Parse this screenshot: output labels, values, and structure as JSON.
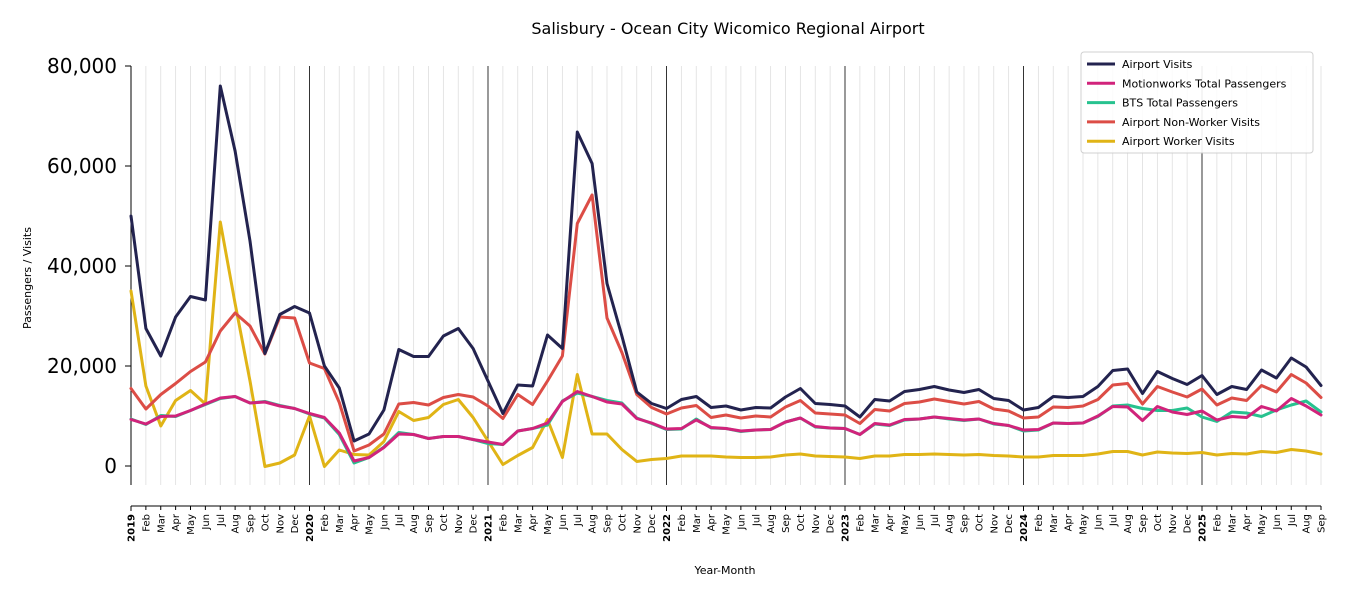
{
  "chart_data": {
    "type": "line",
    "title": "Salisbury - Ocean City Wicomico Regional Airport",
    "xlabel": "Year-Month",
    "ylabel": "Passengers / Visits",
    "ylim": [
      -3800,
      80000
    ],
    "yticks": [
      0,
      20000,
      40000,
      60000,
      80000
    ],
    "ytick_labels": [
      "0",
      "20,000",
      "40,000",
      "60,000",
      "80,000"
    ],
    "grid": "vertical, monthly",
    "legend_position": "top-right",
    "x_start": "2019-01",
    "x": [
      "2019",
      "Feb",
      "Mar",
      "Apr",
      "May",
      "Jun",
      "Jul",
      "Aug",
      "Sep",
      "Oct",
      "Nov",
      "Dec",
      "2020",
      "Feb",
      "Mar",
      "Apr",
      "May",
      "Jun",
      "Jul",
      "Aug",
      "Sep",
      "Oct",
      "Nov",
      "Dec",
      "2021",
      "Feb",
      "Mar",
      "Apr",
      "May",
      "Jun",
      "Jul",
      "Aug",
      "Sep",
      "Oct",
      "Nov",
      "Dec",
      "2022",
      "Feb",
      "Mar",
      "Apr",
      "May",
      "Jun",
      "Jul",
      "Aug",
      "Sep",
      "Oct",
      "Nov",
      "Dec",
      "2023",
      "Feb",
      "Mar",
      "Apr",
      "May",
      "Jun",
      "Jul",
      "Aug",
      "Sep",
      "Oct",
      "Nov",
      "Dec",
      "2024",
      "Feb",
      "Mar",
      "Apr",
      "May",
      "Jun",
      "Jul",
      "Aug",
      "Sep",
      "Oct",
      "Nov",
      "Dec",
      "2025",
      "Feb",
      "Mar",
      "Apr",
      "May",
      "Jun",
      "Jul",
      "Aug",
      "Sep"
    ],
    "series": [
      {
        "name": "Airport Visits",
        "color": "#23234f",
        "values": [
          50000,
          27500,
          22000,
          29800,
          33900,
          33200,
          76000,
          63000,
          45000,
          22500,
          30300,
          31900,
          30600,
          20000,
          15600,
          5000,
          6400,
          11200,
          23300,
          21900,
          21900,
          26000,
          27500,
          23500,
          17000,
          10500,
          16200,
          16000,
          26200,
          23500,
          66800,
          60500,
          36500,
          26000,
          14800,
          12500,
          11500,
          13300,
          13900,
          11700,
          12000,
          11200,
          11700,
          11600,
          13800,
          15500,
          12500,
          12300,
          12000,
          9800,
          13300,
          13000,
          14900,
          15300,
          15900,
          15200,
          14700,
          15300,
          13500,
          13100,
          11200,
          11700,
          13900,
          13700,
          13900,
          15900,
          19100,
          19400,
          14500,
          18900,
          17500,
          16300,
          18100,
          14300,
          15900,
          15300,
          19200,
          17600,
          21600,
          19800,
          16100
        ]
      },
      {
        "name": "Motionworks Total Passengers",
        "color": "#d1237b",
        "values": [
          9300,
          8400,
          9900,
          10000,
          11100,
          12400,
          13600,
          13900,
          12600,
          12800,
          12000,
          11500,
          10500,
          9700,
          6600,
          1000,
          1700,
          3700,
          6400,
          6300,
          5500,
          5900,
          5900,
          5300,
          4800,
          4300,
          7000,
          7500,
          8600,
          12900,
          14900,
          13900,
          12800,
          12400,
          9500,
          8600,
          7400,
          7500,
          9200,
          7700,
          7500,
          7000,
          7200,
          7300,
          8800,
          9600,
          7900,
          7600,
          7500,
          6300,
          8500,
          8200,
          9300,
          9400,
          9800,
          9500,
          9200,
          9400,
          8500,
          8100,
          7200,
          7300,
          8600,
          8500,
          8600,
          10000,
          11900,
          11800,
          9100,
          11900,
          10800,
          10300,
          11000,
          9200,
          9900,
          9700,
          11900,
          11000,
          13500,
          12000,
          10200
        ]
      },
      {
        "name": "BTS Total Passengers",
        "color": "#27c28f",
        "values": [
          9400,
          8300,
          10100,
          9900,
          11100,
          12300,
          13500,
          13900,
          12600,
          12900,
          12100,
          11500,
          10400,
          9600,
          6300,
          600,
          1700,
          3800,
          6700,
          6300,
          5500,
          5900,
          5900,
          5300,
          4500,
          4300,
          7000,
          7500,
          8200,
          13000,
          14600,
          13900,
          13100,
          12600,
          9600,
          8500,
          7300,
          7400,
          9400,
          7600,
          7500,
          6900,
          7200,
          7300,
          8800,
          9600,
          7800,
          7600,
          7500,
          6300,
          8400,
          8100,
          9200,
          9400,
          9800,
          9400,
          9100,
          9400,
          8400,
          8100,
          7000,
          7200,
          8600,
          8500,
          8600,
          9900,
          12000,
          12200,
          11500,
          11100,
          11100,
          11600,
          9800,
          8900,
          10800,
          10600,
          9900,
          11200,
          12200,
          13000,
          10800
        ]
      },
      {
        "name": "Airport Non-Worker Visits",
        "color": "#dc4d46",
        "values": [
          15500,
          11400,
          14300,
          16500,
          18900,
          20800,
          27000,
          30600,
          28000,
          22400,
          29800,
          29600,
          20600,
          19500,
          12700,
          3000,
          4200,
          6400,
          12400,
          12700,
          12200,
          13700,
          14300,
          13800,
          12000,
          9500,
          14300,
          12300,
          17000,
          22000,
          48500,
          54200,
          29600,
          22700,
          14300,
          11700,
          10400,
          11600,
          12100,
          9700,
          10200,
          9600,
          10000,
          9800,
          11800,
          13100,
          10600,
          10400,
          10200,
          8500,
          11300,
          11000,
          12500,
          12800,
          13400,
          12900,
          12400,
          12900,
          11400,
          11000,
          9600,
          9800,
          11800,
          11700,
          12000,
          13300,
          16200,
          16500,
          12400,
          15900,
          14800,
          13800,
          15400,
          12200,
          13600,
          13100,
          16100,
          14800,
          18300,
          16600,
          13700
        ]
      },
      {
        "name": "Airport Worker Visits",
        "color": "#e0b416",
        "values": [
          35000,
          16000,
          8000,
          13100,
          15100,
          12400,
          48800,
          32500,
          17000,
          -100,
          600,
          2200,
          10000,
          -100,
          3200,
          2300,
          2200,
          4900,
          10900,
          9100,
          9700,
          12300,
          13300,
          9700,
          5000,
          300,
          2100,
          3700,
          9300,
          1700,
          18300,
          6400,
          6400,
          3300,
          900,
          1300,
          1500,
          2000,
          2000,
          2000,
          1800,
          1700,
          1700,
          1800,
          2200,
          2400,
          2000,
          1900,
          1800,
          1500,
          2000,
          2000,
          2300,
          2300,
          2400,
          2300,
          2200,
          2300,
          2100,
          2000,
          1800,
          1800,
          2100,
          2100,
          2100,
          2400,
          2900,
          2900,
          2200,
          2800,
          2600,
          2500,
          2700,
          2200,
          2500,
          2400,
          2900,
          2700,
          3300,
          3000,
          2400
        ]
      }
    ]
  }
}
